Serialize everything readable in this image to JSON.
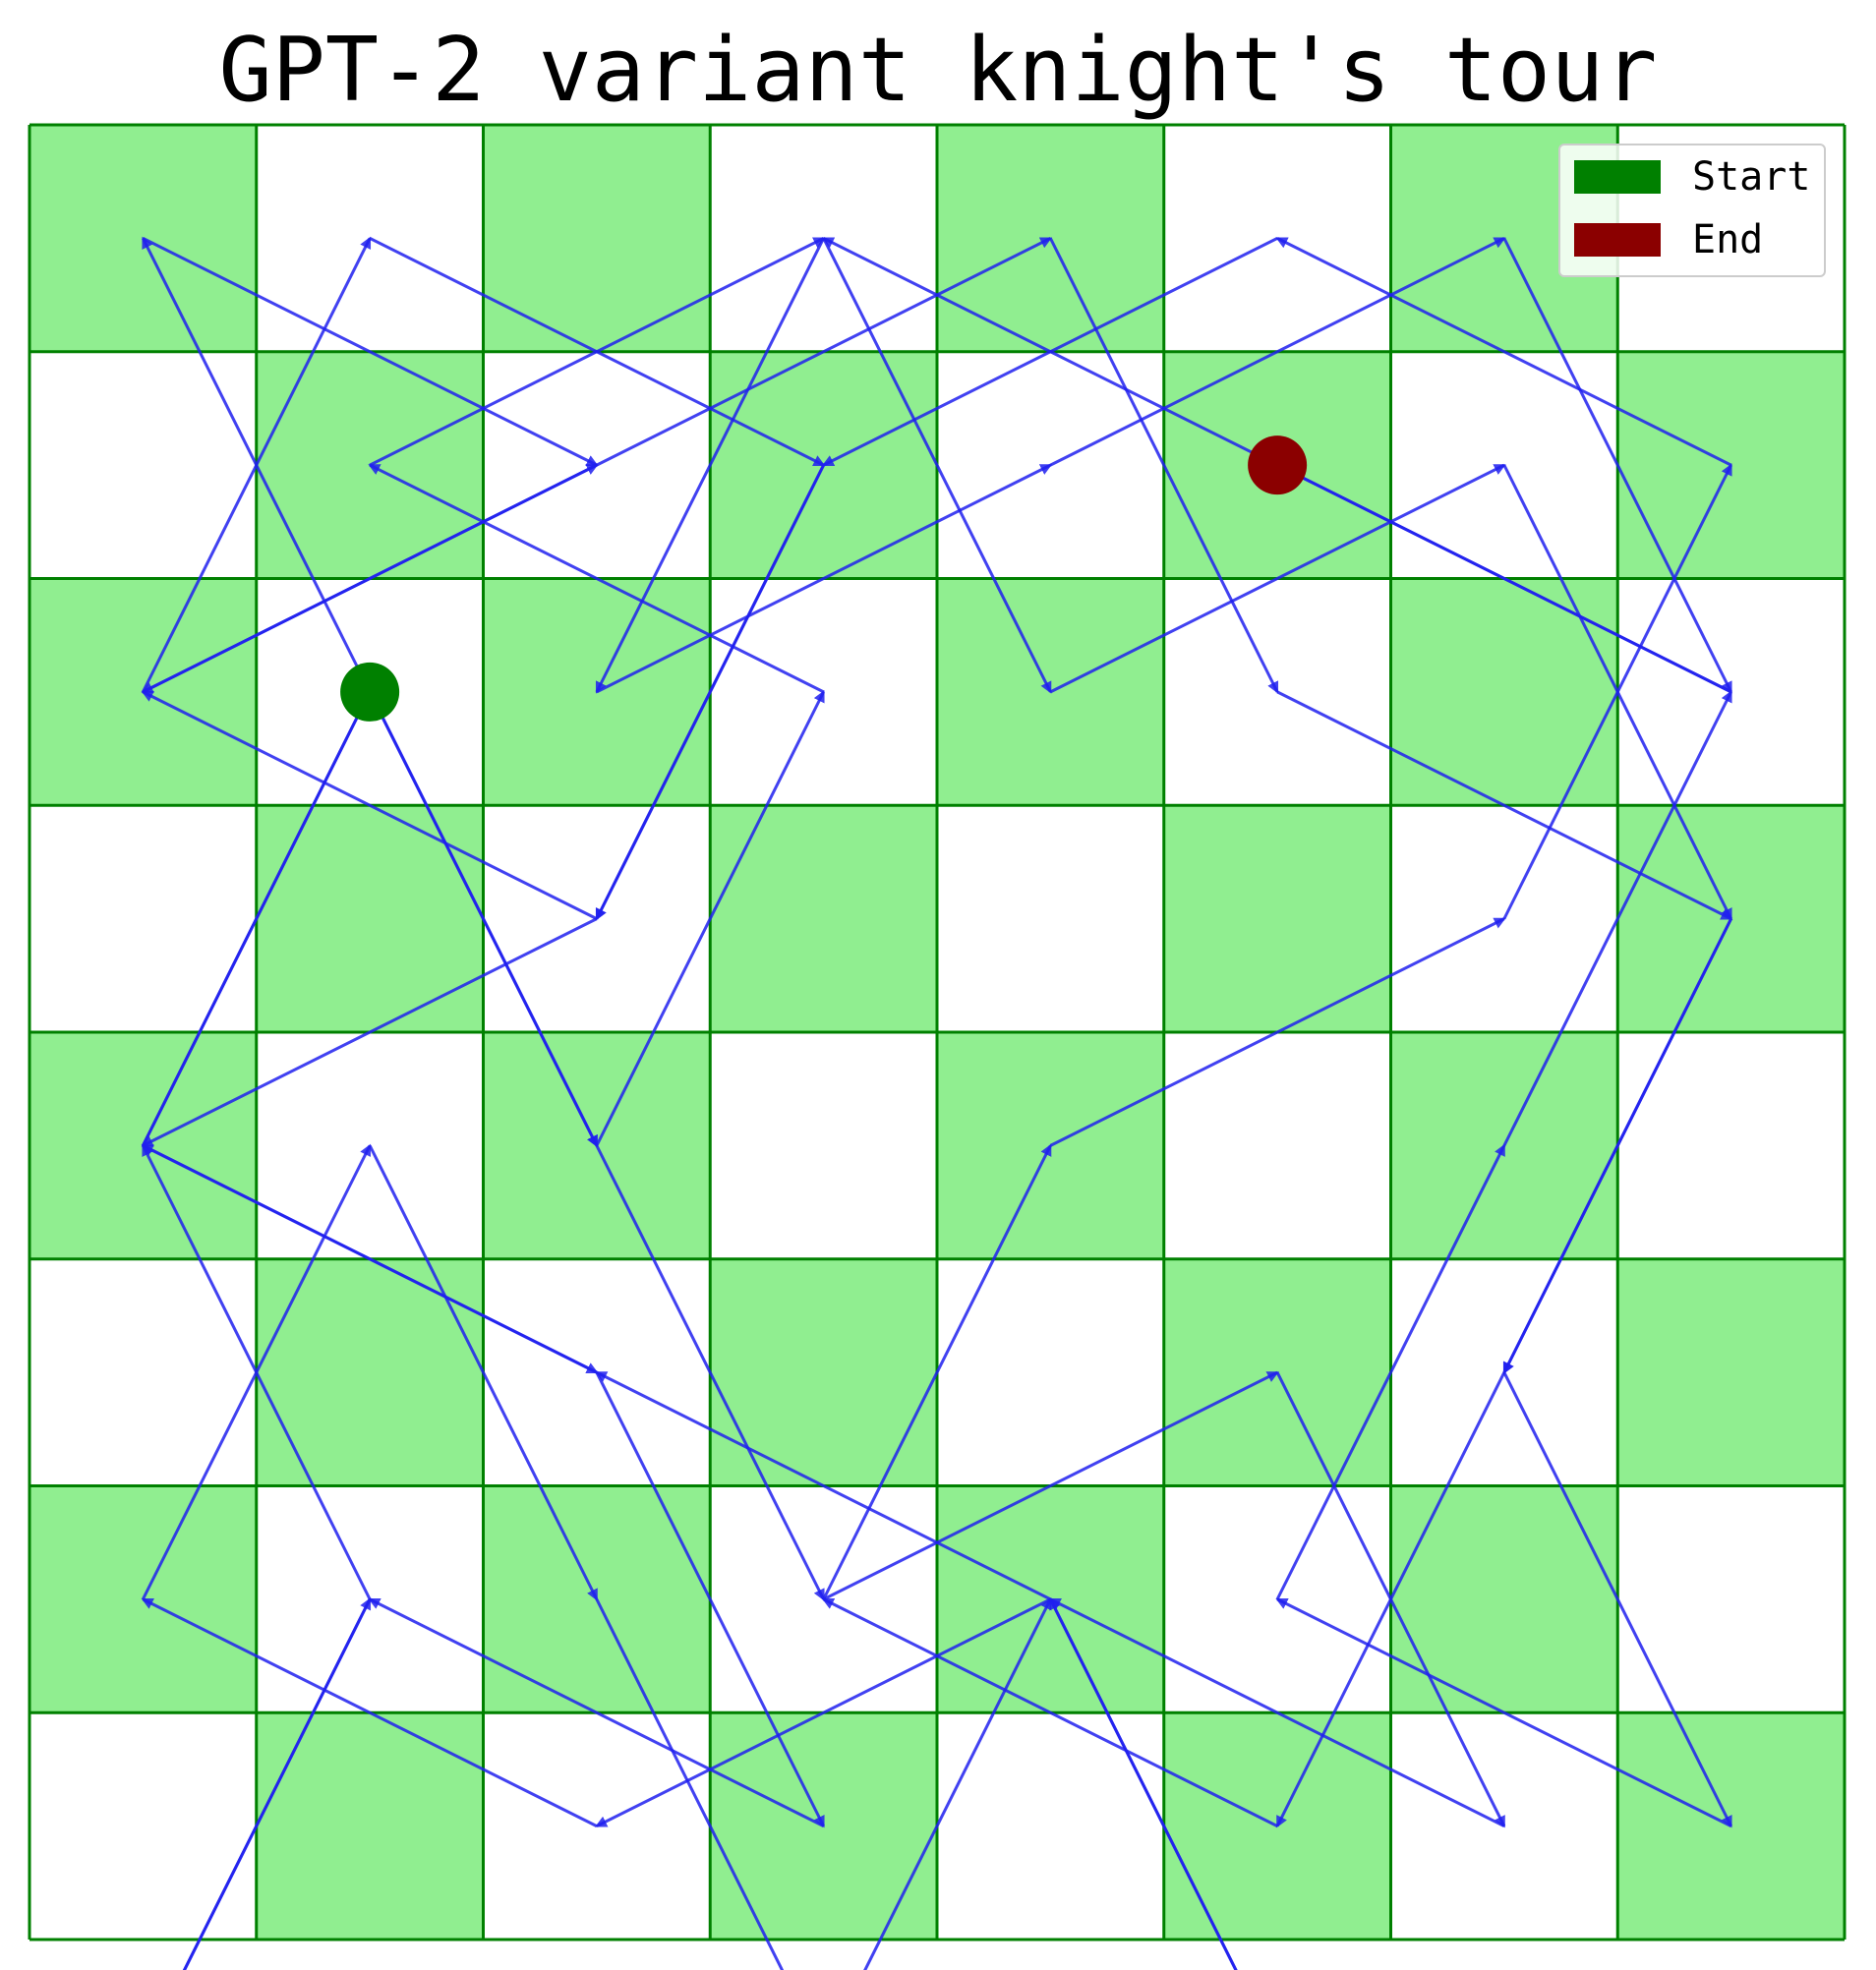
{
  "title": "GPT-2 variant knight's tour",
  "colors": {
    "dark_square": "#90ee90",
    "light_square": "#ffffff",
    "grid_line": "#008000",
    "path": "#2020ee",
    "start": "#008000",
    "end": "#8b0000"
  },
  "legend": {
    "start_label": "Start",
    "end_label": "End"
  },
  "chart_data": {
    "type": "knight-tour",
    "board": {
      "rows": 8,
      "cols": 8
    },
    "start": [
      1,
      2
    ],
    "end": [
      5,
      1
    ],
    "path": [
      [
        1,
        2
      ],
      [
        0,
        0
      ],
      [
        2,
        1
      ],
      [
        0,
        2
      ],
      [
        1,
        0
      ],
      [
        3,
        1
      ],
      [
        2,
        3
      ],
      [
        0,
        4
      ],
      [
        2,
        5
      ],
      [
        3,
        7
      ],
      [
        1,
        6
      ],
      [
        0,
        8
      ],
      [
        1,
        6
      ],
      [
        0,
        4
      ],
      [
        1,
        2
      ],
      [
        2,
        4
      ],
      [
        3,
        6
      ],
      [
        5,
        5
      ],
      [
        6,
        7
      ],
      [
        4,
        6
      ],
      [
        2,
        7
      ],
      [
        0,
        6
      ],
      [
        1,
        4
      ],
      [
        2,
        6
      ],
      [
        3,
        8
      ],
      [
        4,
        6
      ],
      [
        5,
        8
      ],
      [
        4,
        6
      ],
      [
        2,
        5
      ],
      [
        0,
        4
      ],
      [
        1,
        2
      ],
      [
        2,
        4
      ],
      [
        3,
        2
      ],
      [
        1,
        1
      ],
      [
        3,
        0
      ],
      [
        4,
        2
      ],
      [
        6,
        1
      ],
      [
        7,
        3
      ],
      [
        6,
        5
      ],
      [
        5,
        7
      ],
      [
        3,
        6
      ],
      [
        4,
        4
      ],
      [
        6,
        3
      ],
      [
        7,
        1
      ],
      [
        5,
        0
      ],
      [
        3,
        1
      ],
      [
        2,
        3
      ],
      [
        0,
        2
      ],
      [
        2,
        1
      ],
      [
        4,
        0
      ],
      [
        5,
        2
      ],
      [
        7,
        3
      ],
      [
        6,
        5
      ],
      [
        7,
        7
      ],
      [
        5,
        6
      ],
      [
        6,
        4
      ],
      [
        7,
        2
      ],
      [
        5,
        1
      ],
      [
        3,
        0
      ],
      [
        2,
        2
      ],
      [
        4,
        1
      ],
      [
        6,
        0
      ],
      [
        7,
        2
      ],
      [
        5,
        1
      ]
    ]
  }
}
